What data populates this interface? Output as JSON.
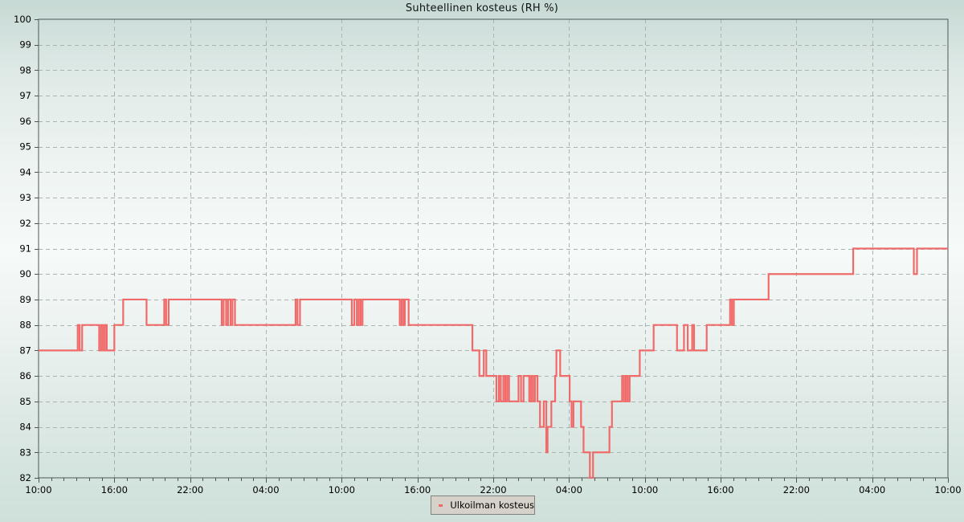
{
  "window": {
    "title": "Suhteellinen kosteus (RH %)"
  },
  "legend": {
    "entries": [
      {
        "label": "Ulkoilman kosteus",
        "color": "#f06a6a"
      }
    ]
  },
  "colors": {
    "series": "#f06a6a",
    "grid": "#a9b4b1",
    "frame": "#4f5755",
    "tick_text": "#000000",
    "legend_bg": "#d6d2ca",
    "legend_border": "#7e837f"
  },
  "chart_data": {
    "type": "line",
    "line_style": "step-after",
    "title": "Suhteellinen kosteus (RH %)",
    "xlabel": "",
    "ylabel": "",
    "ylim": [
      82,
      100
    ],
    "xlim_hours": [
      0,
      72
    ],
    "grid": true,
    "legend_position": "bottom-center",
    "y_ticks": [
      82,
      83,
      84,
      85,
      86,
      87,
      88,
      89,
      90,
      91,
      92,
      93,
      94,
      95,
      96,
      97,
      98,
      99,
      100
    ],
    "x_tick_labels": [
      "10:00",
      "16:00",
      "22:00",
      "04:00",
      "10:00",
      "16:00",
      "22:00",
      "04:00",
      "10:00",
      "16:00",
      "22:00",
      "04:00",
      "10:00"
    ],
    "x_tick_hours": [
      0,
      6,
      12,
      18,
      24,
      30,
      36,
      42,
      48,
      54,
      60,
      66,
      72
    ],
    "x_minor_tick_every_hours": 1,
    "series": [
      {
        "name": "Ulkoilman kosteus",
        "color": "#f06a6a",
        "points_hour_value": [
          [
            0.0,
            87
          ],
          [
            3.1,
            88
          ],
          [
            3.25,
            87
          ],
          [
            3.45,
            88
          ],
          [
            4.8,
            87
          ],
          [
            4.95,
            88
          ],
          [
            5.1,
            87
          ],
          [
            5.25,
            88
          ],
          [
            5.4,
            87
          ],
          [
            6.0,
            88
          ],
          [
            6.7,
            89
          ],
          [
            8.55,
            88
          ],
          [
            9.95,
            89
          ],
          [
            10.1,
            88
          ],
          [
            10.3,
            89
          ],
          [
            14.5,
            88
          ],
          [
            14.65,
            89
          ],
          [
            14.85,
            88
          ],
          [
            15.0,
            89
          ],
          [
            15.2,
            88
          ],
          [
            15.35,
            89
          ],
          [
            15.55,
            88
          ],
          [
            20.35,
            89
          ],
          [
            20.5,
            88
          ],
          [
            20.7,
            89
          ],
          [
            24.8,
            88
          ],
          [
            25.0,
            89
          ],
          [
            25.2,
            88
          ],
          [
            25.35,
            89
          ],
          [
            25.5,
            88
          ],
          [
            25.65,
            89
          ],
          [
            28.6,
            88
          ],
          [
            28.75,
            89
          ],
          [
            28.9,
            88
          ],
          [
            29.0,
            89
          ],
          [
            29.3,
            88
          ],
          [
            34.35,
            87
          ],
          [
            34.9,
            86
          ],
          [
            35.25,
            87
          ],
          [
            35.45,
            86
          ],
          [
            36.25,
            85
          ],
          [
            36.45,
            86
          ],
          [
            36.6,
            85
          ],
          [
            36.8,
            86
          ],
          [
            36.95,
            85
          ],
          [
            37.1,
            86
          ],
          [
            37.25,
            85
          ],
          [
            38.0,
            86
          ],
          [
            38.2,
            85
          ],
          [
            38.4,
            86
          ],
          [
            38.85,
            85
          ],
          [
            39.0,
            86
          ],
          [
            39.15,
            85
          ],
          [
            39.3,
            86
          ],
          [
            39.5,
            85
          ],
          [
            39.7,
            84
          ],
          [
            40.0,
            85
          ],
          [
            40.2,
            83
          ],
          [
            40.3,
            84
          ],
          [
            40.6,
            85
          ],
          [
            40.9,
            86
          ],
          [
            41.0,
            87
          ],
          [
            41.3,
            86
          ],
          [
            42.05,
            85
          ],
          [
            42.2,
            84
          ],
          [
            42.35,
            85
          ],
          [
            42.95,
            84
          ],
          [
            43.15,
            83
          ],
          [
            43.65,
            82
          ],
          [
            43.9,
            83
          ],
          [
            45.2,
            84
          ],
          [
            45.4,
            85
          ],
          [
            46.2,
            86
          ],
          [
            46.35,
            85
          ],
          [
            46.5,
            86
          ],
          [
            46.65,
            85
          ],
          [
            46.8,
            86
          ],
          [
            47.6,
            87
          ],
          [
            48.7,
            88
          ],
          [
            50.55,
            87
          ],
          [
            51.1,
            88
          ],
          [
            51.4,
            87
          ],
          [
            51.75,
            88
          ],
          [
            51.9,
            87
          ],
          [
            52.9,
            88
          ],
          [
            54.75,
            89
          ],
          [
            54.9,
            88
          ],
          [
            55.05,
            89
          ],
          [
            57.8,
            90
          ],
          [
            64.5,
            91
          ],
          [
            69.3,
            90
          ],
          [
            69.55,
            91
          ],
          [
            72.1,
            91
          ]
        ]
      }
    ]
  }
}
